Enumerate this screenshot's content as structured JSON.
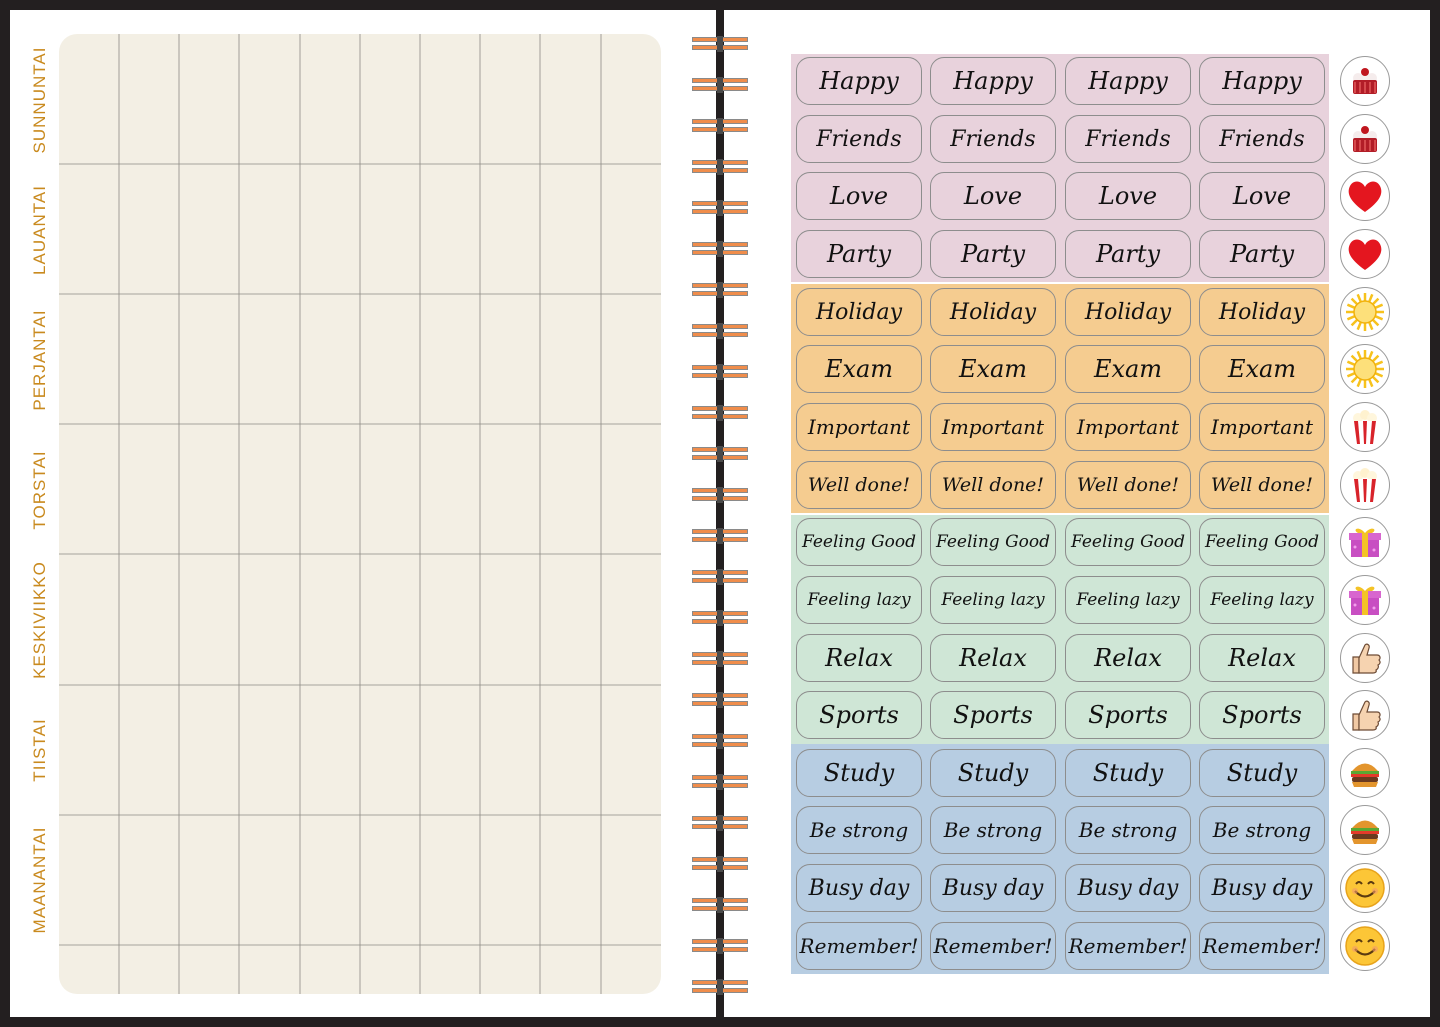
{
  "days": [
    "SUNNUNTAI",
    "LAUANTAI",
    "PERJANTAI",
    "TORSTAI",
    "KESKIVIIKKO",
    "TIISTAI",
    "MAANANTAI"
  ],
  "colors": {
    "cover": "#231f20",
    "grid_bg": "#f3efe4",
    "day_label": "#c98a1e",
    "ring": "#f08d4b",
    "band_pink": "#e8d2dc",
    "band_orange": "#f5cc90",
    "band_green": "#cfe6d6",
    "band_blue": "#b7cde2"
  },
  "sticker_rows": [
    {
      "label": "Happy",
      "band": "pink",
      "icon": "cupcake-icon"
    },
    {
      "label": "Friends",
      "band": "pink",
      "icon": "cupcake-icon"
    },
    {
      "label": "Love",
      "band": "pink",
      "icon": "heart-icon"
    },
    {
      "label": "Party",
      "band": "pink",
      "icon": "heart-icon"
    },
    {
      "label": "Holiday",
      "band": "orange",
      "icon": "sun-icon"
    },
    {
      "label": "Exam",
      "band": "orange",
      "icon": "sun-icon"
    },
    {
      "label": "Important",
      "band": "orange",
      "icon": "popcorn-icon"
    },
    {
      "label": "Well done!",
      "band": "orange",
      "icon": "popcorn-icon"
    },
    {
      "label": "Feeling Good",
      "band": "green",
      "icon": "gift-icon"
    },
    {
      "label": "Feeling lazy",
      "band": "green",
      "icon": "gift-icon"
    },
    {
      "label": "Relax",
      "band": "green",
      "icon": "thumbs-up-icon"
    },
    {
      "label": "Sports",
      "band": "green",
      "icon": "thumbs-up-icon"
    },
    {
      "label": "Study",
      "band": "blue",
      "icon": "burger-icon"
    },
    {
      "label": "Be strong",
      "band": "blue",
      "icon": "burger-icon"
    },
    {
      "label": "Busy day",
      "band": "blue",
      "icon": "smiley-icon"
    },
    {
      "label": "Remember!",
      "band": "blue",
      "icon": "smiley-icon"
    }
  ]
}
